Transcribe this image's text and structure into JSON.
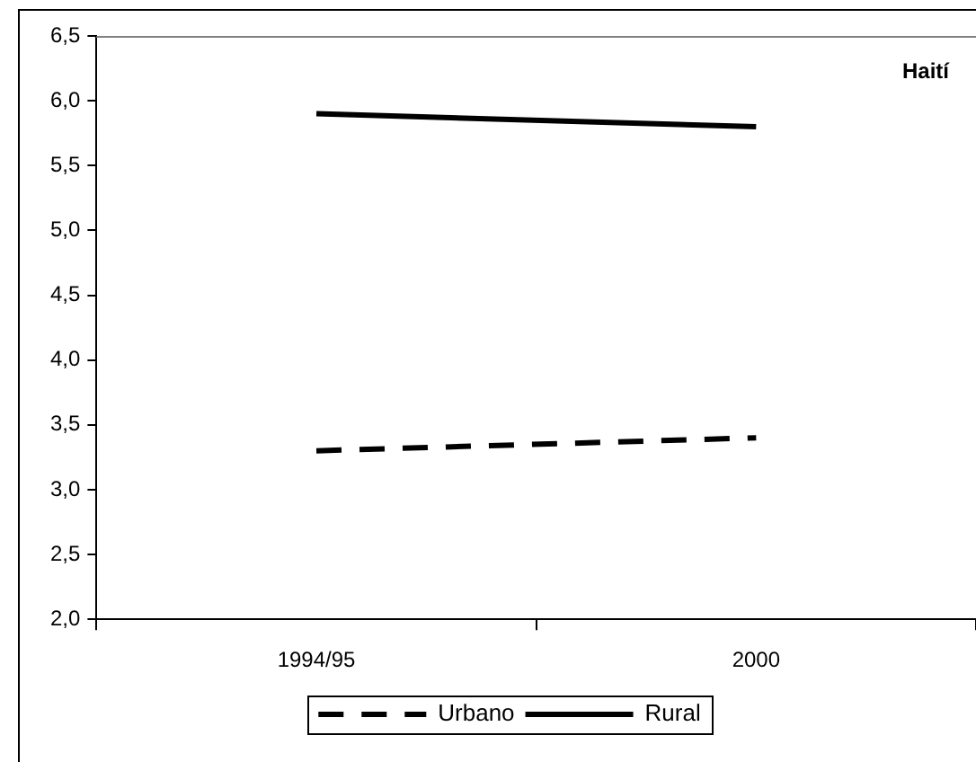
{
  "chart_data": {
    "type": "line",
    "title": "Haití",
    "categories": [
      "1994/95",
      "2000"
    ],
    "series": [
      {
        "name": "Urbano",
        "color": "#000000",
        "values": [
          3.3,
          3.4
        ],
        "line_style": "dashed"
      },
      {
        "name": "Rural",
        "color": "#000000",
        "values": [
          5.9,
          5.8
        ],
        "line_style": "solid"
      }
    ],
    "ylim": [
      2.0,
      6.5
    ],
    "yticks": [
      {
        "value": 2.0,
        "label": "2,0"
      },
      {
        "value": 2.5,
        "label": "2,5"
      },
      {
        "value": 3.0,
        "label": "3,0"
      },
      {
        "value": 3.5,
        "label": "3,5"
      },
      {
        "value": 4.0,
        "label": "4,0"
      },
      {
        "value": 4.5,
        "label": "4,5"
      },
      {
        "value": 5.0,
        "label": "5,0"
      },
      {
        "value": 5.5,
        "label": "5,5"
      },
      {
        "value": 6.0,
        "label": "6,0"
      },
      {
        "value": 6.5,
        "label": "6,5"
      }
    ],
    "grid": false,
    "legend": "bottom",
    "marker": "none"
  }
}
